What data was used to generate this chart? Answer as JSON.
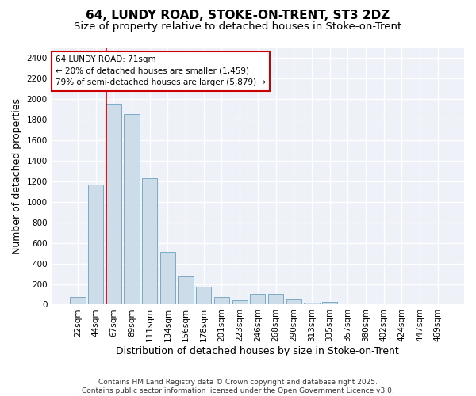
{
  "title1": "64, LUNDY ROAD, STOKE-ON-TRENT, ST3 2DZ",
  "title2": "Size of property relative to detached houses in Stoke-on-Trent",
  "xlabel": "Distribution of detached houses by size in Stoke-on-Trent",
  "ylabel": "Number of detached properties",
  "categories": [
    "22sqm",
    "44sqm",
    "67sqm",
    "89sqm",
    "111sqm",
    "134sqm",
    "156sqm",
    "178sqm",
    "201sqm",
    "223sqm",
    "246sqm",
    "268sqm",
    "290sqm",
    "313sqm",
    "335sqm",
    "357sqm",
    "380sqm",
    "402sqm",
    "424sqm",
    "447sqm",
    "469sqm"
  ],
  "values": [
    75,
    1170,
    1950,
    1850,
    1230,
    510,
    270,
    170,
    75,
    40,
    100,
    100,
    50,
    20,
    25,
    5,
    5,
    2,
    1,
    1,
    1
  ],
  "bar_color": "#ccdce8",
  "bar_edge_color": "#7aaac8",
  "fig_background": "#ffffff",
  "plot_background": "#eef2f8",
  "grid_color": "#ffffff",
  "annotation_text": "64 LUNDY ROAD: 71sqm\n← 20% of detached houses are smaller (1,459)\n79% of semi-detached houses are larger (5,879) →",
  "annotation_box_color": "#ffffff",
  "annotation_box_edge": "#cc0000",
  "vline_x": 1.57,
  "vline_color": "#cc0000",
  "ylim": [
    0,
    2500
  ],
  "yticks": [
    0,
    200,
    400,
    600,
    800,
    1000,
    1200,
    1400,
    1600,
    1800,
    2000,
    2200,
    2400
  ],
  "footer": "Contains HM Land Registry data © Crown copyright and database right 2025.\nContains public sector information licensed under the Open Government Licence v3.0.",
  "title_fontsize": 11,
  "subtitle_fontsize": 9.5,
  "tick_fontsize": 7.5,
  "label_fontsize": 9,
  "annotation_fontsize": 7.5,
  "footer_fontsize": 6.5
}
